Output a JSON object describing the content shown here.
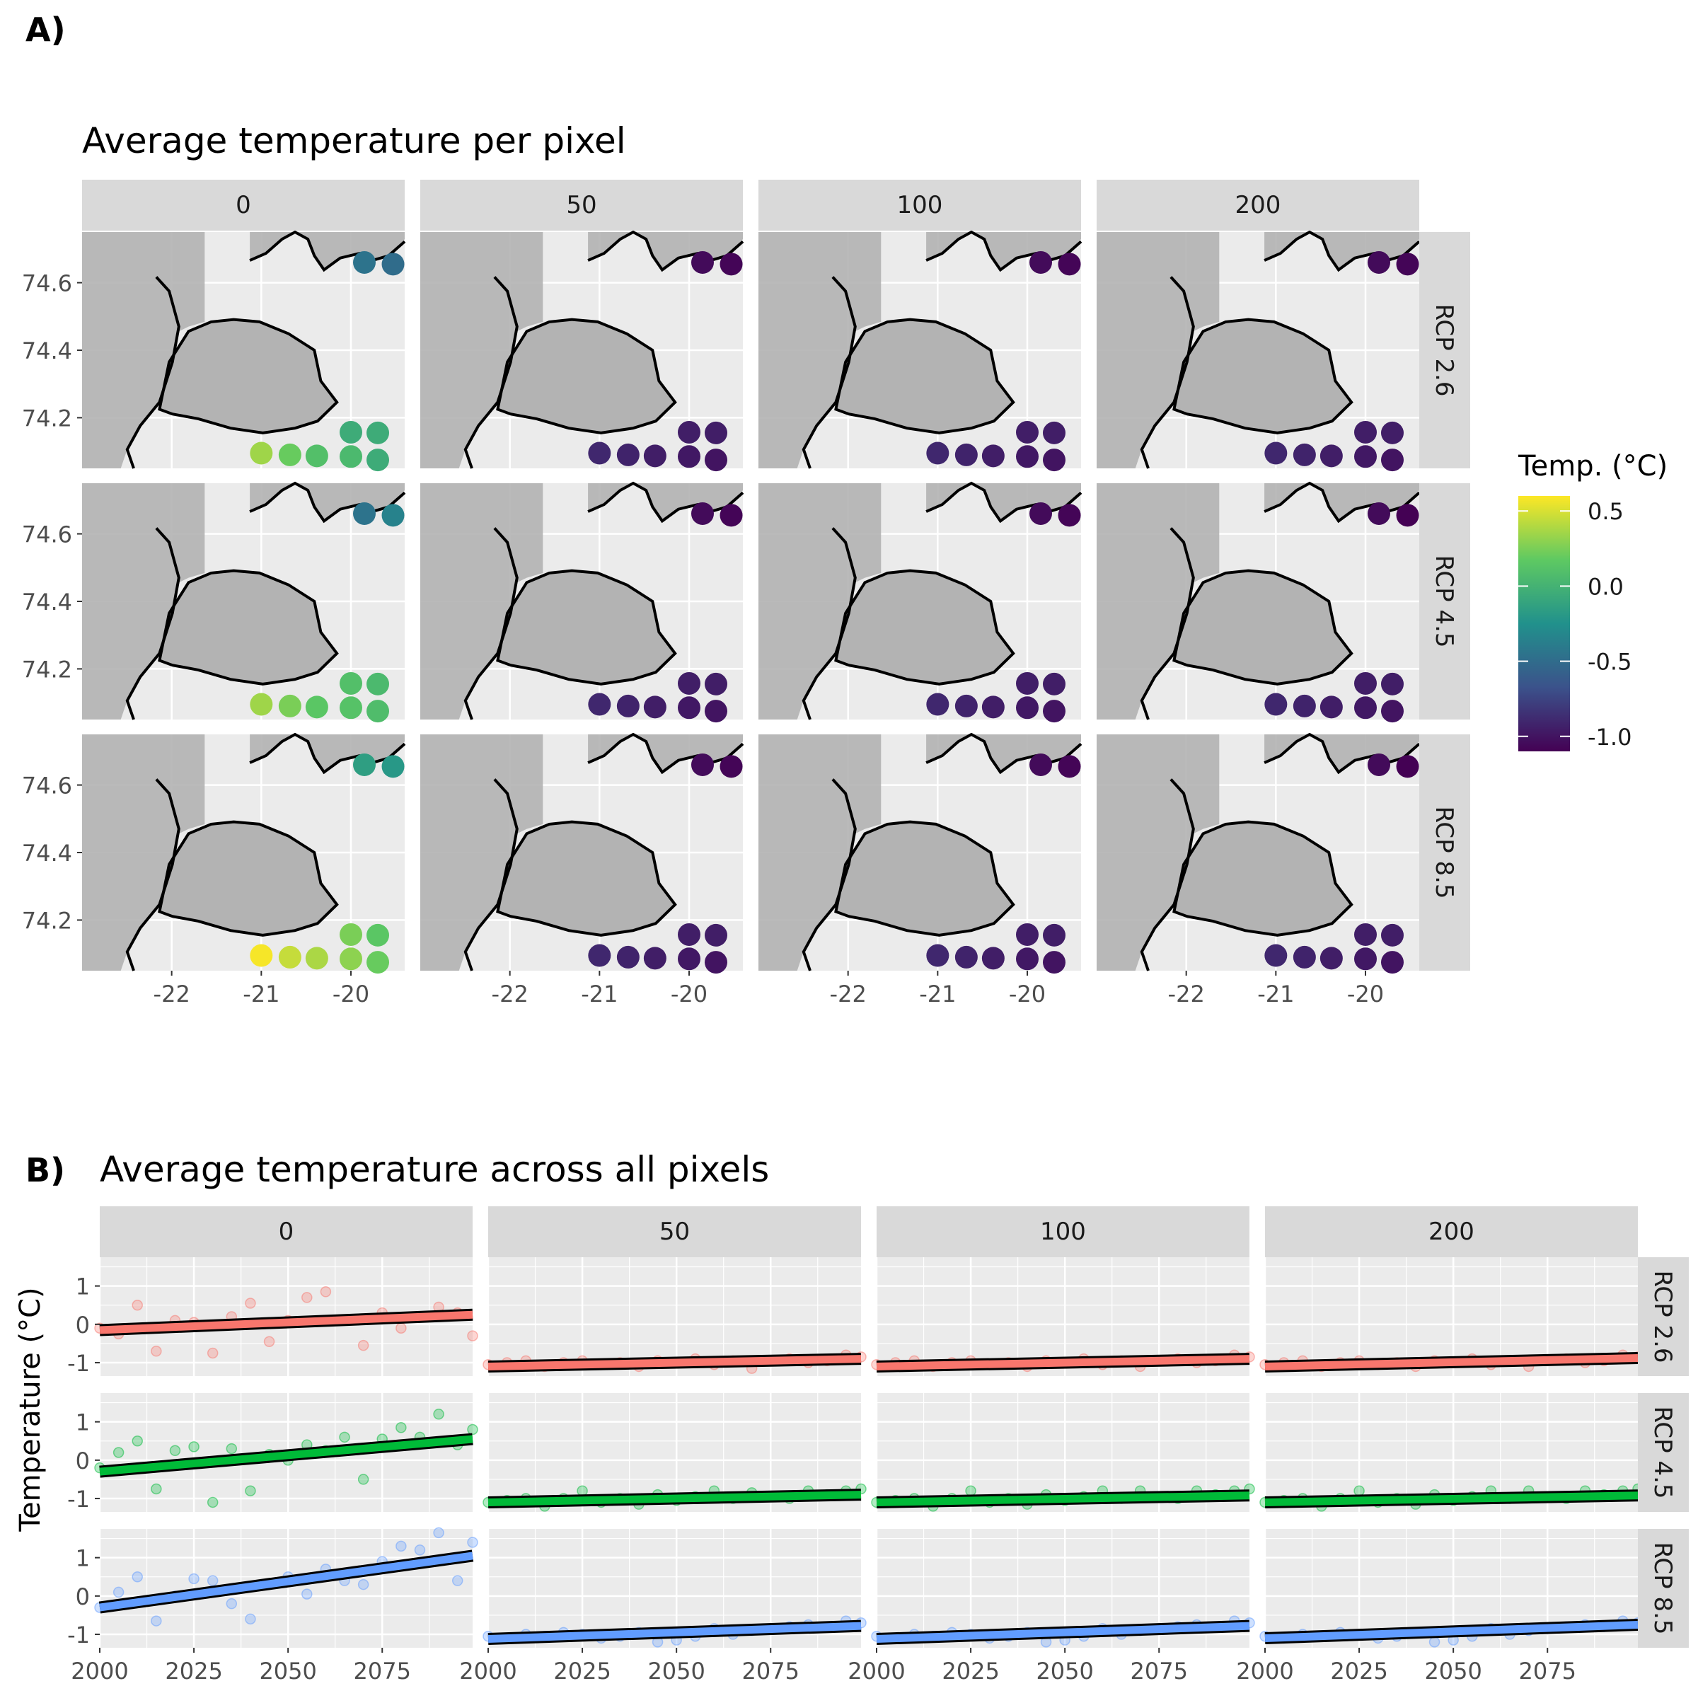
{
  "panel_a": {
    "label": "A)",
    "title": "Average temperature per pixel",
    "y_ticks": [
      "74.6",
      "74.4",
      "74.2"
    ],
    "x_ticks": [
      "-22",
      "-21",
      "-20"
    ],
    "legend_title": "Temp. (°C)",
    "legend_ticks": [
      "0.5",
      "0.0",
      "-0.5",
      "-1.0"
    ]
  },
  "panel_b": {
    "label": "B)",
    "title": "Average temperature across all pixels",
    "ylabel": "Temperature (°C)",
    "y_ticks": [
      "1",
      "0",
      "-1"
    ],
    "x_ticks": [
      "2000",
      "2025",
      "2050",
      "2075"
    ]
  },
  "facets": {
    "cols": [
      "0",
      "50",
      "100",
      "200"
    ],
    "rows": [
      "RCP 2.6",
      "RCP 4.5",
      "RCP 8.5"
    ]
  },
  "colors": {
    "rcp26": "#F8766D",
    "rcp45": "#00BA38",
    "rcp85": "#619CFF",
    "panel_bg": "#EBEBEB",
    "strip_bg": "#D9D9D9",
    "land": "#B3B3B3"
  },
  "chart_data": [
    {
      "type": "scatter",
      "title": "Average temperature per pixel",
      "xlabel": "",
      "ylabel": "",
      "xlim": [
        -23,
        -19.4
      ],
      "ylim": [
        74.05,
        74.75
      ],
      "grid": true,
      "legend": "right",
      "colorscale": "viridis",
      "color_range": [
        -1.1,
        0.6
      ],
      "pixels": [
        {
          "lon": -19.85,
          "lat": 74.66
        },
        {
          "lon": -19.53,
          "lat": 74.655
        },
        {
          "lon": -20.0,
          "lat": 74.157
        },
        {
          "lon": -19.7,
          "lat": 74.155
        },
        {
          "lon": -21.0,
          "lat": 74.095
        },
        {
          "lon": -20.68,
          "lat": 74.09
        },
        {
          "lon": -20.38,
          "lat": 74.087
        },
        {
          "lon": -20.0,
          "lat": 74.085
        },
        {
          "lon": -19.7,
          "lat": 74.075
        }
      ],
      "panels": [
        {
          "col": "0",
          "row": "RCP 2.6",
          "temps": [
            -0.45,
            -0.5,
            -0.05,
            -0.05,
            0.35,
            0.2,
            0.1,
            0.05,
            -0.05
          ]
        },
        {
          "col": "50",
          "row": "RCP 2.6",
          "temps": [
            -1.05,
            -1.08,
            -0.95,
            -0.95,
            -0.9,
            -0.92,
            -0.95,
            -0.98,
            -1.0
          ]
        },
        {
          "col": "100",
          "row": "RCP 2.6",
          "temps": [
            -1.05,
            -1.08,
            -0.95,
            -0.95,
            -0.9,
            -0.92,
            -0.95,
            -0.98,
            -1.0
          ]
        },
        {
          "col": "200",
          "row": "RCP 2.6",
          "temps": [
            -1.05,
            -1.08,
            -0.95,
            -0.95,
            -0.9,
            -0.92,
            -0.95,
            -0.98,
            -1.0
          ]
        },
        {
          "col": "0",
          "row": "RCP 4.5",
          "temps": [
            -0.45,
            -0.35,
            0.1,
            0.05,
            0.35,
            0.25,
            0.15,
            0.12,
            0.08
          ]
        },
        {
          "col": "50",
          "row": "RCP 4.5",
          "temps": [
            -1.05,
            -1.08,
            -0.95,
            -0.95,
            -0.9,
            -0.92,
            -0.95,
            -0.98,
            -1.0
          ]
        },
        {
          "col": "100",
          "row": "RCP 4.5",
          "temps": [
            -1.05,
            -1.08,
            -0.95,
            -0.95,
            -0.9,
            -0.92,
            -0.95,
            -0.98,
            -1.0
          ]
        },
        {
          "col": "200",
          "row": "RCP 4.5",
          "temps": [
            -1.05,
            -1.1,
            -0.95,
            -0.95,
            -0.9,
            -0.92,
            -0.95,
            -0.98,
            -1.0
          ]
        },
        {
          "col": "0",
          "row": "RCP 8.5",
          "temps": [
            -0.15,
            -0.2,
            0.25,
            0.15,
            0.58,
            0.45,
            0.38,
            0.3,
            0.2
          ]
        },
        {
          "col": "50",
          "row": "RCP 8.5",
          "temps": [
            -1.05,
            -1.08,
            -0.95,
            -0.95,
            -0.9,
            -0.92,
            -0.95,
            -0.98,
            -1.0
          ]
        },
        {
          "col": "100",
          "row": "RCP 8.5",
          "temps": [
            -1.05,
            -1.08,
            -0.95,
            -0.95,
            -0.9,
            -0.92,
            -0.95,
            -0.98,
            -1.0
          ]
        },
        {
          "col": "200",
          "row": "RCP 8.5",
          "temps": [
            -1.05,
            -1.1,
            -0.95,
            -0.95,
            -0.9,
            -0.92,
            -0.95,
            -0.98,
            -1.0
          ]
        }
      ]
    },
    {
      "type": "line",
      "title": "Average temperature across all pixels",
      "xlabel": "",
      "ylabel": "Temperature (°C)",
      "xlim": [
        2000,
        2099
      ],
      "ylim": [
        -1.35,
        1.75
      ],
      "grid": true,
      "x": [
        2000,
        2005,
        2010,
        2015,
        2020,
        2025,
        2030,
        2035,
        2040,
        2045,
        2050,
        2055,
        2060,
        2065,
        2070,
        2075,
        2080,
        2085,
        2090,
        2095,
        2099
      ],
      "panels": [
        {
          "col": "0",
          "row": "RCP 2.6",
          "trend": [
            -0.15,
            0.25
          ],
          "values": [
            -0.1,
            -0.25,
            0.5,
            -0.7,
            0.1,
            0.05,
            -0.75,
            0.2,
            0.55,
            -0.45,
            0.1,
            0.7,
            0.85,
            0.1,
            -0.55,
            0.3,
            -0.1,
            0.2,
            0.45,
            0.3,
            -0.3
          ]
        },
        {
          "col": "50",
          "row": "RCP 2.6",
          "trend": [
            -1.1,
            -0.9
          ],
          "values": [
            -1.05,
            -1.0,
            -0.95,
            -1.1,
            -1.0,
            -0.95,
            -1.05,
            -1.0,
            -1.1,
            -0.95,
            -1.0,
            -0.9,
            -1.05,
            -0.95,
            -1.15,
            -0.95,
            -0.9,
            -1.0,
            -0.95,
            -0.8,
            -0.85
          ]
        },
        {
          "col": "100",
          "row": "RCP 2.6",
          "trend": [
            -1.1,
            -0.9
          ],
          "values": [
            -1.05,
            -1.0,
            -0.95,
            -1.1,
            -1.0,
            -0.95,
            -1.05,
            -1.0,
            -1.1,
            -0.95,
            -1.0,
            -0.9,
            -1.05,
            -0.95,
            -1.1,
            -0.95,
            -0.9,
            -1.0,
            -0.95,
            -0.8,
            -0.85
          ]
        },
        {
          "col": "200",
          "row": "RCP 2.6",
          "trend": [
            -1.1,
            -0.88
          ],
          "values": [
            -1.05,
            -1.0,
            -0.95,
            -1.1,
            -1.0,
            -0.95,
            -1.05,
            -1.0,
            -1.1,
            -0.95,
            -1.0,
            -0.9,
            -1.05,
            -0.95,
            -1.1,
            -0.95,
            -0.9,
            -1.0,
            -0.95,
            -0.8,
            -0.85
          ]
        },
        {
          "col": "0",
          "row": "RCP 4.5",
          "trend": [
            -0.3,
            0.55
          ],
          "values": [
            -0.2,
            0.2,
            0.5,
            -0.75,
            0.25,
            0.35,
            -1.1,
            0.3,
            -0.8,
            0.15,
            0.0,
            0.4,
            0.25,
            0.6,
            -0.5,
            0.55,
            0.85,
            0.6,
            1.2,
            0.4,
            0.8
          ]
        },
        {
          "col": "50",
          "row": "RCP 4.5",
          "trend": [
            -1.1,
            -0.9
          ],
          "values": [
            -1.1,
            -1.05,
            -1.0,
            -1.2,
            -1.0,
            -0.8,
            -1.1,
            -1.0,
            -1.15,
            -0.9,
            -1.05,
            -0.95,
            -0.8,
            -1.0,
            -0.85,
            -0.95,
            -1.0,
            -0.8,
            -0.9,
            -0.8,
            -0.75
          ]
        },
        {
          "col": "100",
          "row": "RCP 4.5",
          "trend": [
            -1.1,
            -0.92
          ],
          "values": [
            -1.1,
            -1.05,
            -1.0,
            -1.2,
            -1.0,
            -0.8,
            -1.1,
            -1.0,
            -1.15,
            -0.9,
            -1.05,
            -0.95,
            -0.8,
            -1.0,
            -0.8,
            -0.95,
            -1.0,
            -0.8,
            -0.9,
            -0.8,
            -0.75
          ]
        },
        {
          "col": "200",
          "row": "RCP 4.5",
          "trend": [
            -1.1,
            -0.92
          ],
          "values": [
            -1.1,
            -1.05,
            -1.0,
            -1.2,
            -1.0,
            -0.8,
            -1.1,
            -1.0,
            -1.15,
            -0.9,
            -1.05,
            -0.95,
            -0.8,
            -1.0,
            -0.8,
            -0.95,
            -1.0,
            -0.8,
            -0.9,
            -0.8,
            -0.75
          ]
        },
        {
          "col": "0",
          "row": "RCP 8.5",
          "trend": [
            -0.3,
            1.05
          ],
          "values": [
            -0.3,
            0.1,
            0.5,
            -0.65,
            0.0,
            0.45,
            0.4,
            -0.2,
            -0.6,
            0.3,
            0.5,
            0.05,
            0.7,
            0.4,
            0.3,
            0.9,
            1.3,
            1.2,
            1.65,
            0.4,
            1.4
          ]
        },
        {
          "col": "50",
          "row": "RCP 8.5",
          "trend": [
            -1.12,
            -0.78
          ],
          "values": [
            -1.05,
            -1.1,
            -1.0,
            -1.05,
            -0.95,
            -1.0,
            -1.1,
            -1.05,
            -0.95,
            -1.2,
            -1.15,
            -1.05,
            -0.85,
            -1.0,
            -0.9,
            -0.85,
            -0.8,
            -0.75,
            -0.8,
            -0.65,
            -0.7
          ]
        },
        {
          "col": "100",
          "row": "RCP 8.5",
          "trend": [
            -1.12,
            -0.78
          ],
          "values": [
            -1.05,
            -1.1,
            -1.0,
            -1.05,
            -0.95,
            -1.0,
            -1.1,
            -1.05,
            -0.95,
            -1.2,
            -1.15,
            -1.05,
            -0.85,
            -1.0,
            -0.9,
            -0.85,
            -0.8,
            -0.75,
            -0.8,
            -0.65,
            -0.7
          ]
        },
        {
          "col": "200",
          "row": "RCP 8.5",
          "trend": [
            -1.1,
            -0.75
          ],
          "values": [
            -1.05,
            -1.1,
            -1.0,
            -1.05,
            -0.95,
            -1.0,
            -1.1,
            -1.05,
            -0.95,
            -1.2,
            -1.15,
            -1.05,
            -0.85,
            -1.0,
            -0.9,
            -0.85,
            -0.8,
            -0.75,
            -0.8,
            -0.65,
            -0.7
          ]
        }
      ]
    }
  ]
}
